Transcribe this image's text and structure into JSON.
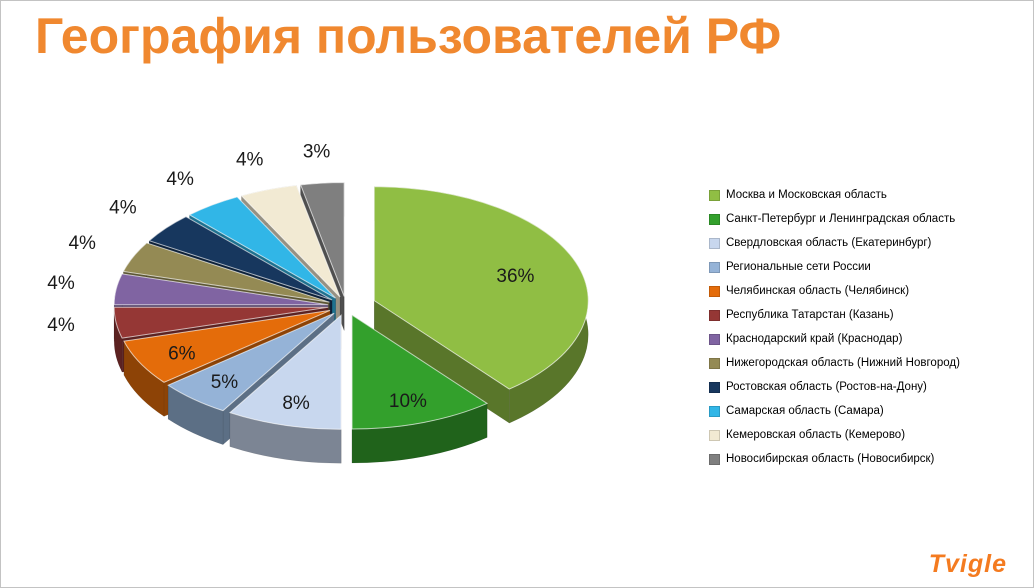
{
  "slide": {
    "title": "География пользователей РФ",
    "title_color": "#F0882F",
    "background": "#FFFFFF"
  },
  "logo": {
    "text": "Tvigle",
    "color": "#F47B20"
  },
  "chart_data": {
    "type": "pie",
    "style": "3d-exploded",
    "title": "География пользователей РФ",
    "unit": "%",
    "legend_position": "right",
    "slices": [
      {
        "label": "Москва и Московская область",
        "value": 36,
        "display": "36%",
        "color": "#90BE44"
      },
      {
        "label": "Санкт-Петербург и Ленинградская область",
        "value": 10,
        "display": "10%",
        "color": "#33A02C"
      },
      {
        "label": "Свердловская область (Екатеринбург)",
        "value": 8,
        "display": "8%",
        "color": "#C8D7EE"
      },
      {
        "label": "Региональные сети России",
        "value": 5,
        "display": "5%",
        "color": "#95B3D7"
      },
      {
        "label": "Челябинская область (Челябинск)",
        "value": 6,
        "display": "6%",
        "color": "#E46C0A"
      },
      {
        "label": "Республика Татарстан (Казань)",
        "value": 4,
        "display": "4%",
        "color": "#953735"
      },
      {
        "label": "Краснодарский край (Краснодар)",
        "value": 4,
        "display": "4%",
        "color": "#8064A2"
      },
      {
        "label": "Нижегородская область (Нижний Новгород)",
        "value": 4,
        "display": "4%",
        "color": "#948A54"
      },
      {
        "label": "Ростовская область (Ростов-на-Дону)",
        "value": 4,
        "display": "4%",
        "color": "#17375E"
      },
      {
        "label": "Самарская область (Самара)",
        "value": 4,
        "display": "4%",
        "color": "#31B6E7"
      },
      {
        "label": "Кемеровская область (Кемерово)",
        "value": 4,
        "display": "4%",
        "color": "#F2EAD3"
      },
      {
        "label": "Новосибирская область (Новосибирск)",
        "value": 3,
        "display": "3%",
        "color": "#7F7F7F"
      }
    ]
  }
}
